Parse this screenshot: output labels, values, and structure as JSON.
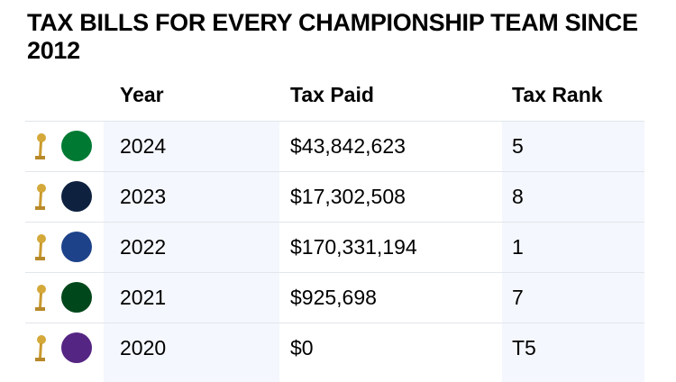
{
  "title": "TAX BILLS FOR EVERY CHAMPIONSHIP TEAM SINCE  2012",
  "chart_data": {
    "type": "table",
    "columns": [
      "Year",
      "Tax Paid",
      "Tax Rank"
    ],
    "rows": [
      {
        "team_logo": "celtics-logo",
        "year": "2024",
        "tax_paid": "$43,842,623",
        "tax_rank": "5",
        "color": "#007a33"
      },
      {
        "team_logo": "nuggets-logo",
        "year": "2023",
        "tax_paid": "$17,302,508",
        "tax_rank": "8",
        "color": "#0e2240"
      },
      {
        "team_logo": "warriors-logo",
        "year": "2022",
        "tax_paid": "$170,331,194",
        "tax_rank": "1",
        "color": "#1d428a"
      },
      {
        "team_logo": "bucks-logo",
        "year": "2021",
        "tax_paid": "$925,698",
        "tax_rank": "7",
        "color": "#00471b"
      },
      {
        "team_logo": "lakers-logo",
        "year": "2020",
        "tax_paid": "$0",
        "tax_rank": "T5",
        "color": "#552583"
      }
    ]
  }
}
